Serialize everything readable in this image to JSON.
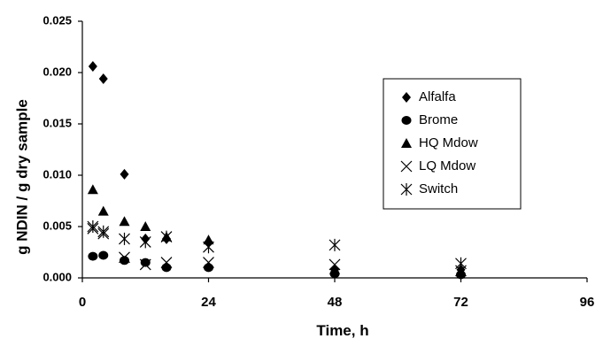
{
  "chart_data": {
    "type": "scatter",
    "title": "",
    "xlabel": "Time, h",
    "ylabel": "g NDIN / g dry sample",
    "xlim": [
      0,
      96
    ],
    "ylim": [
      0,
      0.025
    ],
    "xticks": [
      0,
      24,
      48,
      72,
      96
    ],
    "yticks": [
      0.0,
      0.005,
      0.01,
      0.015,
      0.02,
      0.025
    ],
    "ytick_labels": [
      "0.000",
      "0.005",
      "0.010",
      "0.015",
      "0.020",
      "0.025"
    ],
    "grid": false,
    "legend_position": "right",
    "series": [
      {
        "name": "Alfalfa",
        "marker": "diamond",
        "x": [
          2,
          4,
          8,
          12,
          16,
          24,
          48,
          72
        ],
        "y": [
          0.0206,
          0.0194,
          0.0101,
          0.0038,
          0.0038,
          0.0035,
          0.0008,
          0.0008
        ]
      },
      {
        "name": "Brome",
        "marker": "circle",
        "x": [
          2,
          4,
          8,
          12,
          16,
          24,
          48,
          72
        ],
        "y": [
          0.0021,
          0.0022,
          0.0017,
          0.0015,
          0.001,
          0.001,
          0.0004,
          0.0003
        ]
      },
      {
        "name": "HQ Mdow",
        "marker": "triangle",
        "x": [
          2,
          4,
          8,
          12,
          16,
          24,
          48,
          72
        ],
        "y": [
          0.0086,
          0.0065,
          0.0055,
          0.005,
          0.004,
          0.0037,
          0.0008,
          0.0006
        ]
      },
      {
        "name": "LQ Mdow",
        "marker": "x",
        "x": [
          2,
          4,
          8,
          12,
          16,
          24,
          48,
          72
        ],
        "y": [
          0.0048,
          0.0043,
          0.002,
          0.0013,
          0.0015,
          0.0015,
          0.0013,
          0.0007
        ]
      },
      {
        "name": "Switch",
        "marker": "asterisk",
        "x": [
          2,
          4,
          8,
          12,
          16,
          24,
          48,
          72
        ],
        "y": [
          0.005,
          0.0045,
          0.0038,
          0.0035,
          0.004,
          0.003,
          0.0032,
          0.0014
        ]
      }
    ]
  }
}
